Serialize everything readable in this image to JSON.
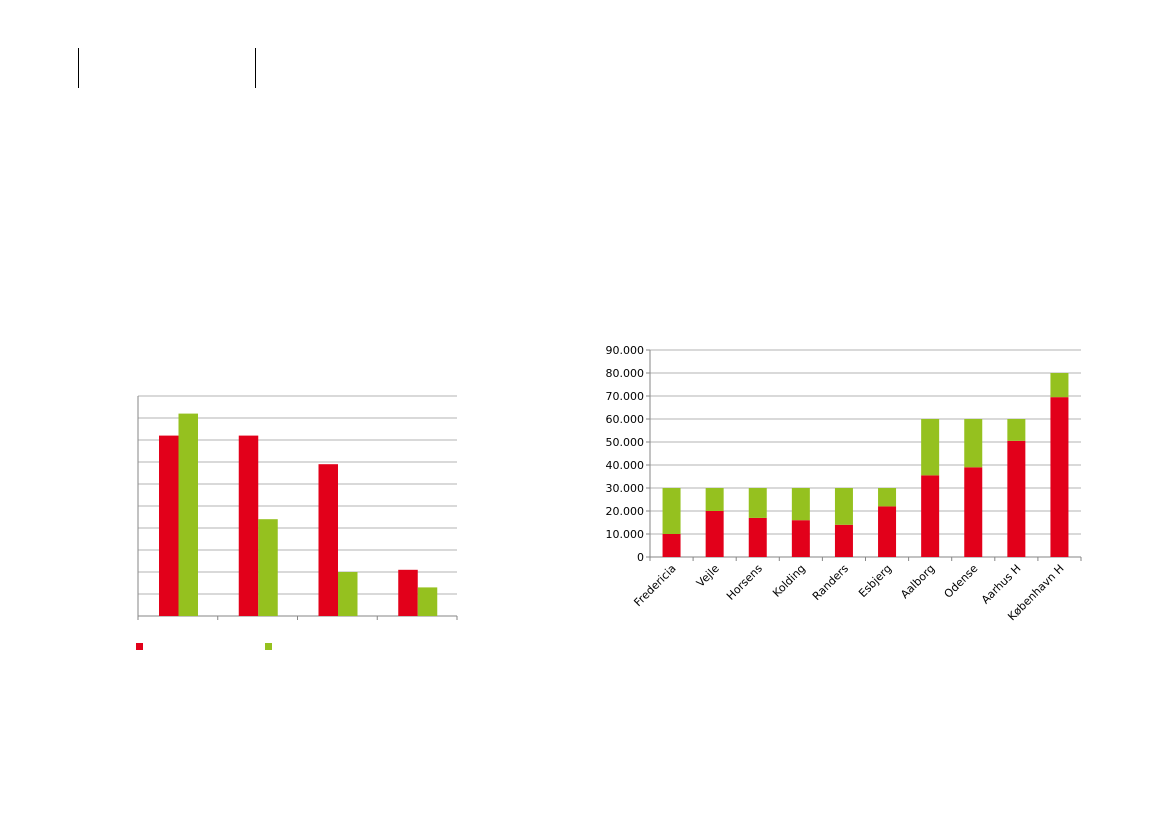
{
  "chart_data": [
    {
      "type": "bar",
      "title": "",
      "xlabel": "",
      "ylabel": "",
      "grid": true,
      "legend_position": "bottom",
      "categories": [
        "",
        "",
        "",
        ""
      ],
      "ylim": [
        0,
        10
      ],
      "series": [
        {
          "color": "#e2001a",
          "values": [
            8.2,
            8.2,
            6.9,
            2.1
          ]
        },
        {
          "color": "#95c11f",
          "values": [
            9.2,
            4.4,
            2.0,
            1.3
          ]
        }
      ]
    },
    {
      "type": "bar",
      "stacked": true,
      "title": "",
      "xlabel": "",
      "ylabel": "",
      "grid": true,
      "categories": [
        "Fredericia",
        "Vejle",
        "Horsens",
        "Kolding",
        "Randers",
        "Esbjerg",
        "Aalborg",
        "Odense",
        "Aarhus H",
        "København H"
      ],
      "ylim": [
        0,
        90000
      ],
      "y_ticks": [
        "0",
        "10.000",
        "20.000",
        "30.000",
        "40.000",
        "50.000",
        "60.000",
        "70.000",
        "80.000",
        "90.000"
      ],
      "series": [
        {
          "color": "#e2001a",
          "values": [
            10000,
            20000,
            17000,
            16000,
            14000,
            22000,
            35500,
            39000,
            50500,
            69500
          ]
        },
        {
          "color": "#95c11f",
          "values": [
            20000,
            10000,
            13000,
            14000,
            16000,
            8000,
            24500,
            21000,
            9500,
            10500
          ]
        }
      ]
    }
  ]
}
